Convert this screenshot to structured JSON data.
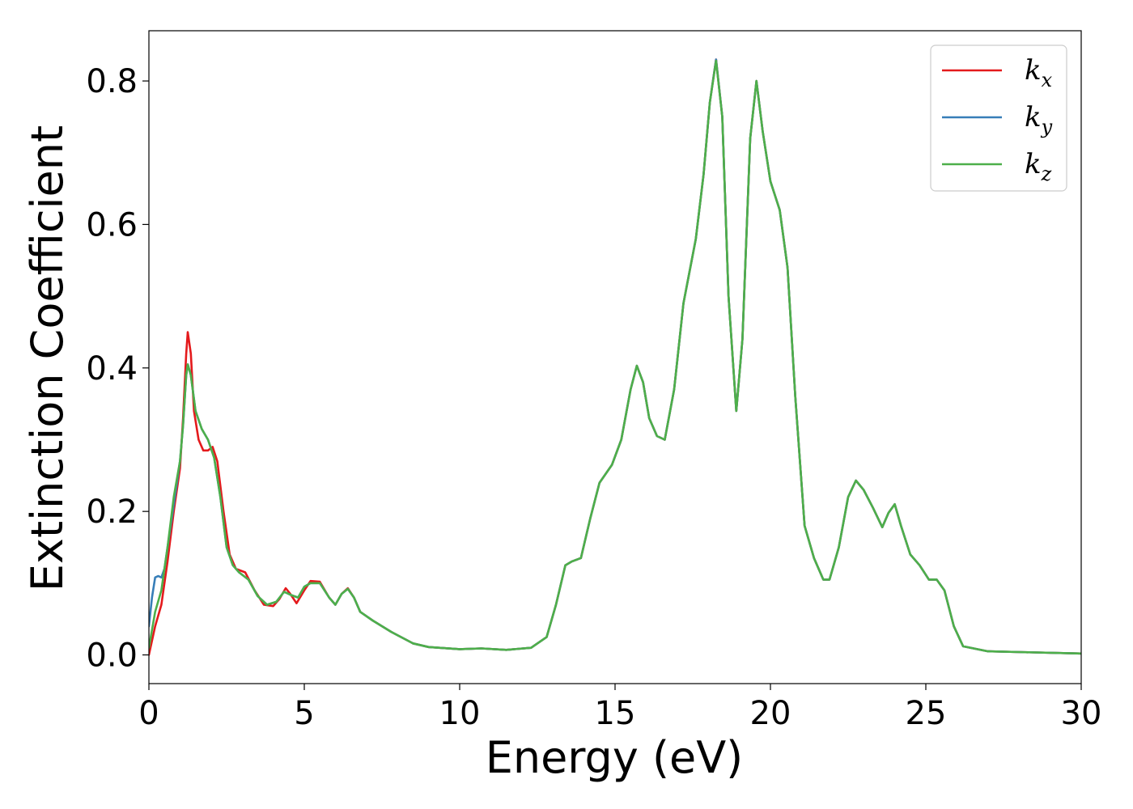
{
  "chart_data": {
    "type": "line",
    "title": "",
    "xlabel": "Energy (eV)",
    "ylabel": "Extinction Coefficient",
    "xlim": [
      0,
      30
    ],
    "ylim": [
      -0.04,
      0.87
    ],
    "xticks": [
      0,
      5,
      10,
      15,
      20,
      25,
      30
    ],
    "xtick_labels": [
      "0",
      "5",
      "10",
      "15",
      "20",
      "25",
      "30"
    ],
    "yticks": [
      0.0,
      0.2,
      0.4,
      0.6,
      0.8
    ],
    "ytick_labels": [
      "0.0",
      "0.2",
      "0.4",
      "0.6",
      "0.8"
    ],
    "grid": false,
    "legend_position": "top-right",
    "series": [
      {
        "name": "k_x",
        "legend_main": "k",
        "legend_sub": "x",
        "color": "#e41a1c",
        "points": [
          [
            0,
            0
          ],
          [
            0.2,
            0.04
          ],
          [
            0.4,
            0.07
          ],
          [
            0.6,
            0.13
          ],
          [
            0.8,
            0.2
          ],
          [
            1.0,
            0.26
          ],
          [
            1.1,
            0.33
          ],
          [
            1.2,
            0.42
          ],
          [
            1.25,
            0.45
          ],
          [
            1.35,
            0.42
          ],
          [
            1.45,
            0.34
          ],
          [
            1.6,
            0.3
          ],
          [
            1.75,
            0.285
          ],
          [
            1.9,
            0.285
          ],
          [
            2.05,
            0.29
          ],
          [
            2.2,
            0.27
          ],
          [
            2.4,
            0.2
          ],
          [
            2.6,
            0.14
          ],
          [
            2.8,
            0.12
          ],
          [
            3.1,
            0.115
          ],
          [
            3.4,
            0.09
          ],
          [
            3.7,
            0.07
          ],
          [
            4.0,
            0.068
          ],
          [
            4.2,
            0.078
          ],
          [
            4.4,
            0.093
          ],
          [
            4.55,
            0.085
          ],
          [
            4.75,
            0.072
          ],
          [
            5.0,
            0.09
          ],
          [
            5.2,
            0.103
          ],
          [
            5.5,
            0.102
          ],
          [
            5.8,
            0.08
          ],
          [
            6.0,
            0.07
          ],
          [
            6.2,
            0.085
          ],
          [
            6.4,
            0.093
          ],
          [
            6.6,
            0.08
          ],
          [
            6.8,
            0.06
          ],
          [
            7.2,
            0.048
          ],
          [
            7.8,
            0.032
          ],
          [
            8.5,
            0.016
          ],
          [
            9.0,
            0.011
          ],
          [
            10.0,
            0.008
          ],
          [
            10.7,
            0.009
          ],
          [
            11.5,
            0.007
          ],
          [
            12.3,
            0.01
          ],
          [
            12.8,
            0.025
          ],
          [
            13.1,
            0.07
          ],
          [
            13.4,
            0.125
          ],
          [
            13.6,
            0.13
          ],
          [
            13.9,
            0.135
          ],
          [
            14.2,
            0.19
          ],
          [
            14.5,
            0.24
          ],
          [
            14.9,
            0.265
          ],
          [
            15.2,
            0.3
          ],
          [
            15.5,
            0.37
          ],
          [
            15.7,
            0.403
          ],
          [
            15.9,
            0.38
          ],
          [
            16.1,
            0.33
          ],
          [
            16.35,
            0.305
          ],
          [
            16.6,
            0.3
          ],
          [
            16.9,
            0.37
          ],
          [
            17.2,
            0.49
          ],
          [
            17.6,
            0.58
          ],
          [
            17.85,
            0.67
          ],
          [
            18.05,
            0.77
          ],
          [
            18.25,
            0.83
          ],
          [
            18.45,
            0.75
          ],
          [
            18.65,
            0.5
          ],
          [
            18.9,
            0.34
          ],
          [
            19.1,
            0.44
          ],
          [
            19.35,
            0.72
          ],
          [
            19.55,
            0.8
          ],
          [
            19.75,
            0.73
          ],
          [
            20.0,
            0.66
          ],
          [
            20.3,
            0.62
          ],
          [
            20.55,
            0.54
          ],
          [
            20.8,
            0.36
          ],
          [
            21.1,
            0.18
          ],
          [
            21.4,
            0.135
          ],
          [
            21.7,
            0.105
          ],
          [
            21.9,
            0.105
          ],
          [
            22.2,
            0.15
          ],
          [
            22.5,
            0.22
          ],
          [
            22.75,
            0.243
          ],
          [
            23.0,
            0.23
          ],
          [
            23.3,
            0.205
          ],
          [
            23.6,
            0.178
          ],
          [
            23.8,
            0.198
          ],
          [
            24.0,
            0.21
          ],
          [
            24.2,
            0.18
          ],
          [
            24.5,
            0.14
          ],
          [
            24.8,
            0.125
          ],
          [
            25.1,
            0.105
          ],
          [
            25.35,
            0.105
          ],
          [
            25.6,
            0.09
          ],
          [
            25.9,
            0.04
          ],
          [
            26.2,
            0.012
          ],
          [
            27.0,
            0.005
          ],
          [
            28.0,
            0.004
          ],
          [
            30.0,
            0.002
          ]
        ]
      },
      {
        "name": "k_y",
        "legend_main": "k",
        "legend_sub": "y",
        "color": "#377eb8",
        "points": [
          [
            0,
            0.04
          ],
          [
            0.1,
            0.08
          ],
          [
            0.2,
            0.108
          ],
          [
            0.3,
            0.11
          ],
          [
            0.4,
            0.108
          ],
          [
            0.5,
            0.12
          ],
          [
            0.7,
            0.18
          ],
          [
            0.9,
            0.24
          ],
          [
            1.0,
            0.27
          ],
          [
            1.1,
            0.32
          ],
          [
            1.2,
            0.39
          ],
          [
            1.25,
            0.405
          ],
          [
            1.35,
            0.39
          ],
          [
            1.5,
            0.34
          ],
          [
            1.7,
            0.315
          ],
          [
            1.9,
            0.3
          ],
          [
            2.1,
            0.275
          ],
          [
            2.3,
            0.22
          ],
          [
            2.5,
            0.15
          ],
          [
            2.7,
            0.125
          ],
          [
            2.9,
            0.115
          ],
          [
            3.2,
            0.105
          ],
          [
            3.5,
            0.082
          ],
          [
            3.8,
            0.07
          ],
          [
            4.1,
            0.074
          ],
          [
            4.35,
            0.088
          ],
          [
            4.6,
            0.083
          ],
          [
            4.8,
            0.08
          ],
          [
            5.0,
            0.095
          ],
          [
            5.2,
            0.1
          ],
          [
            5.5,
            0.1
          ],
          [
            5.8,
            0.08
          ],
          [
            6.0,
            0.07
          ],
          [
            6.2,
            0.085
          ],
          [
            6.4,
            0.092
          ],
          [
            6.6,
            0.08
          ],
          [
            6.8,
            0.06
          ],
          [
            7.2,
            0.048
          ],
          [
            7.8,
            0.032
          ],
          [
            8.5,
            0.016
          ],
          [
            9.0,
            0.011
          ],
          [
            10.0,
            0.008
          ],
          [
            10.7,
            0.009
          ],
          [
            11.5,
            0.007
          ],
          [
            12.3,
            0.01
          ],
          [
            12.8,
            0.025
          ],
          [
            13.1,
            0.07
          ],
          [
            13.4,
            0.125
          ],
          [
            13.6,
            0.13
          ],
          [
            13.9,
            0.135
          ],
          [
            14.2,
            0.19
          ],
          [
            14.5,
            0.24
          ],
          [
            14.9,
            0.265
          ],
          [
            15.2,
            0.3
          ],
          [
            15.5,
            0.37
          ],
          [
            15.7,
            0.403
          ],
          [
            15.9,
            0.38
          ],
          [
            16.1,
            0.33
          ],
          [
            16.35,
            0.305
          ],
          [
            16.6,
            0.3
          ],
          [
            16.9,
            0.37
          ],
          [
            17.2,
            0.49
          ],
          [
            17.6,
            0.58
          ],
          [
            17.85,
            0.67
          ],
          [
            18.05,
            0.77
          ],
          [
            18.25,
            0.83
          ],
          [
            18.45,
            0.75
          ],
          [
            18.65,
            0.5
          ],
          [
            18.9,
            0.34
          ],
          [
            19.1,
            0.44
          ],
          [
            19.35,
            0.72
          ],
          [
            19.55,
            0.8
          ],
          [
            19.75,
            0.73
          ],
          [
            20.0,
            0.66
          ],
          [
            20.3,
            0.62
          ],
          [
            20.55,
            0.54
          ],
          [
            20.8,
            0.36
          ],
          [
            21.1,
            0.18
          ],
          [
            21.4,
            0.135
          ],
          [
            21.7,
            0.105
          ],
          [
            21.9,
            0.105
          ],
          [
            22.2,
            0.15
          ],
          [
            22.5,
            0.22
          ],
          [
            22.75,
            0.243
          ],
          [
            23.0,
            0.23
          ],
          [
            23.3,
            0.205
          ],
          [
            23.6,
            0.178
          ],
          [
            23.8,
            0.198
          ],
          [
            24.0,
            0.21
          ],
          [
            24.2,
            0.18
          ],
          [
            24.5,
            0.14
          ],
          [
            24.8,
            0.125
          ],
          [
            25.1,
            0.105
          ],
          [
            25.35,
            0.105
          ],
          [
            25.6,
            0.09
          ],
          [
            25.9,
            0.04
          ],
          [
            26.2,
            0.012
          ],
          [
            27.0,
            0.005
          ],
          [
            28.0,
            0.004
          ],
          [
            30.0,
            0.002
          ]
        ]
      },
      {
        "name": "k_z",
        "legend_main": "k",
        "legend_sub": "z",
        "color": "#4daf4a",
        "points": [
          [
            0,
            0.01
          ],
          [
            0.2,
            0.06
          ],
          [
            0.4,
            0.09
          ],
          [
            0.6,
            0.15
          ],
          [
            0.8,
            0.22
          ],
          [
            1.0,
            0.27
          ],
          [
            1.1,
            0.32
          ],
          [
            1.2,
            0.39
          ],
          [
            1.25,
            0.405
          ],
          [
            1.35,
            0.39
          ],
          [
            1.5,
            0.34
          ],
          [
            1.7,
            0.315
          ],
          [
            1.9,
            0.3
          ],
          [
            2.1,
            0.275
          ],
          [
            2.3,
            0.22
          ],
          [
            2.5,
            0.15
          ],
          [
            2.7,
            0.125
          ],
          [
            2.9,
            0.115
          ],
          [
            3.2,
            0.105
          ],
          [
            3.5,
            0.082
          ],
          [
            3.8,
            0.07
          ],
          [
            4.1,
            0.074
          ],
          [
            4.35,
            0.088
          ],
          [
            4.6,
            0.083
          ],
          [
            4.8,
            0.08
          ],
          [
            5.0,
            0.095
          ],
          [
            5.2,
            0.1
          ],
          [
            5.5,
            0.1
          ],
          [
            5.8,
            0.08
          ],
          [
            6.0,
            0.07
          ],
          [
            6.2,
            0.085
          ],
          [
            6.4,
            0.092
          ],
          [
            6.6,
            0.08
          ],
          [
            6.8,
            0.06
          ],
          [
            7.2,
            0.048
          ],
          [
            7.8,
            0.032
          ],
          [
            8.5,
            0.016
          ],
          [
            9.0,
            0.011
          ],
          [
            10.0,
            0.008
          ],
          [
            10.7,
            0.009
          ],
          [
            11.5,
            0.007
          ],
          [
            12.3,
            0.01
          ],
          [
            12.8,
            0.025
          ],
          [
            13.1,
            0.07
          ],
          [
            13.4,
            0.125
          ],
          [
            13.6,
            0.13
          ],
          [
            13.9,
            0.135
          ],
          [
            14.2,
            0.19
          ],
          [
            14.5,
            0.24
          ],
          [
            14.9,
            0.265
          ],
          [
            15.2,
            0.3
          ],
          [
            15.5,
            0.37
          ],
          [
            15.7,
            0.403
          ],
          [
            15.9,
            0.38
          ],
          [
            16.1,
            0.33
          ],
          [
            16.35,
            0.305
          ],
          [
            16.6,
            0.3
          ],
          [
            16.9,
            0.37
          ],
          [
            17.2,
            0.49
          ],
          [
            17.6,
            0.58
          ],
          [
            17.85,
            0.67
          ],
          [
            18.05,
            0.77
          ],
          [
            18.25,
            0.828
          ],
          [
            18.45,
            0.75
          ],
          [
            18.65,
            0.5
          ],
          [
            18.9,
            0.34
          ],
          [
            19.1,
            0.44
          ],
          [
            19.35,
            0.72
          ],
          [
            19.55,
            0.8
          ],
          [
            19.75,
            0.73
          ],
          [
            20.0,
            0.66
          ],
          [
            20.3,
            0.62
          ],
          [
            20.55,
            0.54
          ],
          [
            20.8,
            0.36
          ],
          [
            21.1,
            0.18
          ],
          [
            21.4,
            0.135
          ],
          [
            21.7,
            0.105
          ],
          [
            21.9,
            0.105
          ],
          [
            22.2,
            0.15
          ],
          [
            22.5,
            0.22
          ],
          [
            22.75,
            0.243
          ],
          [
            23.0,
            0.23
          ],
          [
            23.3,
            0.205
          ],
          [
            23.6,
            0.178
          ],
          [
            23.8,
            0.198
          ],
          [
            24.0,
            0.21
          ],
          [
            24.2,
            0.18
          ],
          [
            24.5,
            0.14
          ],
          [
            24.8,
            0.125
          ],
          [
            25.1,
            0.105
          ],
          [
            25.35,
            0.105
          ],
          [
            25.6,
            0.09
          ],
          [
            25.9,
            0.04
          ],
          [
            26.2,
            0.012
          ],
          [
            27.0,
            0.005
          ],
          [
            28.0,
            0.004
          ],
          [
            30.0,
            0.002
          ]
        ]
      }
    ]
  }
}
